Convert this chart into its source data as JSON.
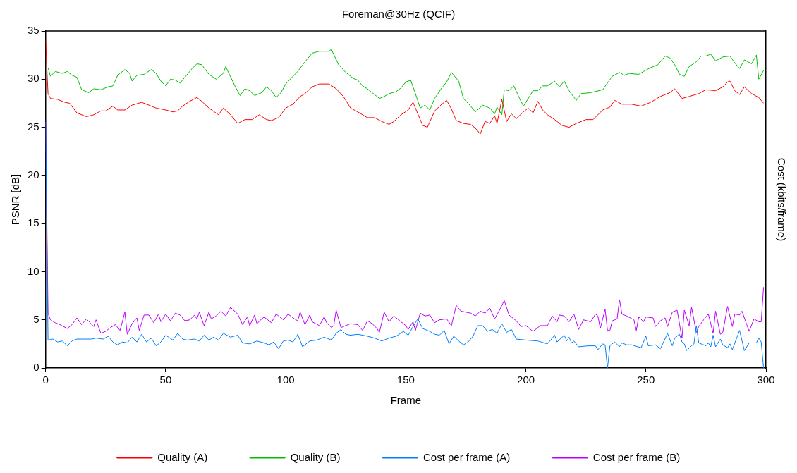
{
  "chart_data": {
    "type": "line",
    "title": "Foreman@30Hz (QCIF)",
    "xlabel": "Frame",
    "ylabel": "PSNR [dB]",
    "y2label": "Cost (kbits/frame)",
    "xlim": [
      0,
      300
    ],
    "xticks": [
      0,
      50,
      100,
      150,
      200,
      250,
      300
    ],
    "ylim": [
      0,
      35
    ],
    "yticks": [
      0,
      5,
      10,
      15,
      20,
      25,
      30,
      35
    ],
    "grid": false,
    "legend": "bottom",
    "marker": "none",
    "line_style": "solid",
    "series": [
      {
        "name": "Quality (A)",
        "color": "#ff0000",
        "x": [
          0,
          1,
          2,
          5,
          8,
          10,
          13,
          17,
          20,
          23,
          25,
          28,
          30,
          33,
          36,
          40,
          43,
          46,
          50,
          53,
          55,
          57,
          60,
          63,
          65,
          68,
          72,
          74,
          77,
          80,
          83,
          86,
          89,
          92,
          94,
          97,
          100,
          103,
          106,
          108,
          111,
          114,
          118,
          121,
          124,
          127,
          130,
          134,
          137,
          140,
          143,
          145,
          148,
          151,
          153,
          155,
          157,
          159,
          162,
          165,
          167,
          169,
          171,
          174,
          177,
          179,
          181,
          183,
          185,
          187,
          188,
          190,
          192,
          194,
          196,
          199,
          201,
          203,
          205,
          207,
          209,
          212,
          215,
          218,
          221,
          225,
          228,
          232,
          235,
          237,
          240,
          244,
          248,
          252,
          256,
          260,
          262,
          265,
          268,
          272,
          275,
          279,
          282,
          284,
          285,
          287,
          289,
          291,
          294,
          297,
          299
        ],
        "values": [
          34,
          28.5,
          28,
          27.9,
          27.6,
          27.5,
          26.5,
          26.1,
          26.3,
          26.7,
          26.7,
          27.2,
          26.8,
          26.8,
          27.3,
          27.6,
          27.3,
          27,
          26.8,
          26.6,
          26.7,
          27.2,
          27.7,
          28.1,
          27.7,
          27,
          26.3,
          27,
          26.3,
          25.4,
          25.8,
          25.8,
          26.3,
          25.8,
          25.7,
          26,
          27,
          27.4,
          28.2,
          28.5,
          29.2,
          29.5,
          29.5,
          29,
          28.2,
          27,
          26.6,
          26,
          26,
          25.6,
          25.3,
          25.6,
          26.3,
          26.8,
          27.6,
          26.4,
          25.2,
          25,
          26.7,
          27.4,
          27.8,
          26.9,
          25.7,
          25.4,
          25.3,
          24.9,
          24.3,
          25.6,
          25.4,
          26.2,
          25.4,
          27.9,
          25.6,
          26.4,
          25.9,
          26.6,
          27,
          26.5,
          27.7,
          26.8,
          26.3,
          25.8,
          25.2,
          25,
          25.4,
          25.8,
          25.8,
          26.8,
          27.1,
          27.8,
          27.4,
          27.4,
          27.2,
          27.6,
          28.2,
          28.6,
          29,
          28,
          28.2,
          28.5,
          28.9,
          28.8,
          29.2,
          29.7,
          29.8,
          28.8,
          28.4,
          29.2,
          28.5,
          28.1,
          27.5
        ]
      },
      {
        "name": "Quality (B)",
        "color": "#00c000",
        "x": [
          1,
          2,
          4,
          7,
          9,
          11,
          13,
          15,
          18,
          20,
          23,
          26,
          28,
          30,
          33,
          35,
          36,
          38,
          41,
          44,
          46,
          48,
          50,
          52,
          54,
          56,
          58,
          61,
          63,
          65,
          68,
          71,
          74,
          75,
          79,
          81,
          83,
          85,
          87,
          90,
          92,
          94,
          96,
          98,
          100,
          103,
          105,
          108,
          111,
          114,
          118,
          119,
          122,
          125,
          128,
          130,
          132,
          134,
          137,
          139,
          141,
          143,
          146,
          148,
          150,
          152,
          154,
          156,
          158,
          160,
          162,
          165,
          167,
          169,
          172,
          174,
          177,
          179,
          182,
          185,
          187,
          188,
          190,
          191,
          193,
          195,
          197,
          199,
          201,
          203,
          205,
          207,
          209,
          212,
          214,
          216,
          218,
          221,
          223,
          227,
          232,
          234,
          236,
          239,
          241,
          243,
          247,
          249,
          252,
          255,
          258,
          260,
          262,
          264,
          266,
          268,
          271,
          273,
          275,
          277,
          279,
          282,
          285,
          287,
          289,
          291,
          294,
          296,
          297,
          299
        ],
        "values": [
          31.2,
          30.3,
          30.8,
          30.6,
          30.8,
          30.4,
          30.2,
          28.9,
          28.6,
          29,
          28.9,
          29.2,
          29.3,
          30.4,
          31,
          30.6,
          29.8,
          30.4,
          30.5,
          31,
          30.6,
          29.8,
          29.3,
          30,
          29.9,
          29.6,
          30.2,
          31.1,
          31.6,
          31.5,
          30.5,
          30,
          30.6,
          31.3,
          29.2,
          28.3,
          29,
          28.8,
          28.3,
          28.6,
          29.2,
          28.8,
          28.1,
          28.6,
          29.5,
          30.3,
          30.8,
          31.8,
          32.7,
          32.9,
          32.9,
          33.1,
          31.5,
          30.7,
          30.1,
          29.9,
          29.3,
          29,
          28.4,
          28,
          28.2,
          28.5,
          28.7,
          29.1,
          29.7,
          29.9,
          28.5,
          27,
          27.3,
          26.8,
          28,
          29.1,
          29.7,
          30.7,
          29.8,
          28,
          27.2,
          26.6,
          27.3,
          27,
          26.4,
          27.1,
          26.3,
          28.9,
          28.8,
          29.3,
          28.2,
          27.2,
          28,
          28.8,
          28.8,
          29.3,
          29.3,
          29.8,
          29.2,
          29.8,
          28.8,
          27.8,
          28.5,
          28.6,
          28.9,
          29.6,
          30.3,
          30.7,
          30.4,
          30.6,
          30.5,
          30.8,
          31.2,
          31.5,
          32.4,
          32.2,
          31.5,
          30.5,
          30.3,
          31.3,
          31.8,
          32.4,
          32.4,
          32.6,
          31.9,
          32.3,
          32.4,
          31.7,
          31.1,
          32,
          31.6,
          32.5,
          30,
          30.9
        ]
      },
      {
        "name": "Cost per frame (A)",
        "color": "#0080ff",
        "x": [
          0,
          1,
          3,
          5,
          7,
          9,
          11,
          13,
          16,
          19,
          21,
          24,
          26,
          28,
          30,
          32,
          34,
          36,
          38,
          40,
          42,
          44,
          46,
          48,
          50,
          53,
          55,
          57,
          59,
          62,
          64,
          66,
          68,
          70,
          72,
          74,
          77,
          80,
          82,
          85,
          88,
          91,
          93,
          95,
          97,
          99,
          101,
          103,
          105,
          107,
          110,
          113,
          116,
          119,
          121,
          123,
          125,
          127,
          130,
          134,
          137,
          140,
          143,
          146,
          149,
          151,
          153,
          155,
          157,
          160,
          162,
          164,
          166,
          168,
          170,
          172,
          174,
          176,
          178,
          180,
          182,
          184,
          186,
          188,
          190,
          192,
          194,
          196,
          200,
          205,
          209,
          212,
          213,
          216,
          217,
          218,
          219,
          220,
          222,
          226,
          229,
          230,
          232,
          233,
          234,
          235,
          237,
          239,
          240,
          242,
          244,
          248,
          250,
          251,
          254,
          256,
          257,
          259,
          261,
          262,
          264,
          265,
          266,
          267,
          269,
          270,
          271,
          272,
          275,
          276,
          277,
          278,
          279,
          281,
          282,
          284,
          285,
          286,
          289,
          291,
          293,
          296,
          297,
          298,
          299
        ],
        "values": [
          25.6,
          2.9,
          3,
          2.7,
          2.8,
          2.3,
          2.8,
          3,
          3,
          3,
          3.1,
          3,
          3.3,
          2.7,
          2.4,
          2.7,
          2.6,
          3.2,
          2.7,
          3.5,
          2.7,
          3.1,
          2.3,
          2.7,
          3.4,
          2.9,
          3.6,
          3,
          2.9,
          3,
          2.8,
          3.4,
          2.9,
          3.2,
          2.9,
          3.6,
          3.2,
          3.4,
          2.6,
          2.5,
          2.8,
          2.6,
          2.4,
          2.7,
          2,
          2.8,
          2.9,
          2.7,
          3.5,
          2.2,
          2.8,
          2.9,
          3.2,
          2.9,
          3.6,
          4,
          3.5,
          3.4,
          3.5,
          3.3,
          3.1,
          2.8,
          3.1,
          3.3,
          3.8,
          3.4,
          4.3,
          5.1,
          4.1,
          3.8,
          3.5,
          3.4,
          3.9,
          2.5,
          3.3,
          2.8,
          2.4,
          2.7,
          3.3,
          4.4,
          4.4,
          3.8,
          4,
          3.6,
          4.6,
          3.7,
          4,
          3,
          2.9,
          2.8,
          2.5,
          3.4,
          2.7,
          3.4,
          2.8,
          3.2,
          2.6,
          2.8,
          2.2,
          2.3,
          2.3,
          1.9,
          2.5,
          2.4,
          0,
          2.3,
          2.7,
          2.2,
          2.6,
          2.4,
          2.4,
          2.1,
          3.3,
          2.3,
          2.4,
          2,
          2.5,
          3.6,
          2.3,
          3.1,
          3.5,
          2.7,
          2.5,
          1.8,
          2.3,
          2.5,
          4.4,
          2.6,
          2.3,
          2.6,
          2.2,
          3.4,
          2.2,
          3,
          2.4,
          2.1,
          2.5,
          1.9,
          3.9,
          1.8,
          2.6,
          2.6,
          3.1,
          2.7,
          0
        ]
      },
      {
        "name": "Cost per frame (B)",
        "color": "#c000ff",
        "x": [
          0,
          1,
          2,
          4,
          6,
          9,
          11,
          13,
          15,
          17,
          20,
          21,
          23,
          25,
          27,
          29,
          31,
          33,
          34,
          36,
          38,
          39,
          41,
          43,
          45,
          47,
          48,
          50,
          52,
          54,
          56,
          58,
          60,
          62,
          63,
          64,
          66,
          68,
          69,
          71,
          73,
          75,
          77,
          80,
          82,
          84,
          85,
          87,
          88,
          90,
          91,
          94,
          96,
          99,
          101,
          103,
          105,
          106,
          108,
          110,
          111,
          114,
          116,
          117,
          119,
          120,
          121,
          123,
          125,
          127,
          130,
          132,
          134,
          136,
          138,
          139,
          141,
          143,
          145,
          148,
          150,
          151,
          153,
          154,
          156,
          158,
          160,
          162,
          164,
          167,
          169,
          171,
          173,
          175,
          177,
          179,
          181,
          183,
          185,
          187,
          189,
          191,
          193,
          196,
          198,
          200,
          203,
          206,
          209,
          211,
          213,
          214,
          216,
          218,
          220,
          222,
          224,
          227,
          229,
          230,
          231,
          233,
          234,
          235,
          236,
          238,
          239,
          240,
          242,
          245,
          246,
          247,
          249,
          250,
          253,
          254,
          256,
          258,
          259,
          261,
          263,
          265,
          266,
          268,
          269,
          271,
          272,
          274,
          276,
          278,
          279,
          281,
          282,
          284,
          286,
          287,
          289,
          290,
          292,
          293,
          295,
          297,
          298,
          299
        ],
        "values": [
          25.6,
          5.7,
          5,
          4.7,
          4.5,
          4.1,
          4.5,
          5.2,
          4.5,
          5.1,
          4.3,
          5,
          3.6,
          3.8,
          4.2,
          4.5,
          3.9,
          5.8,
          3.5,
          4.6,
          5.2,
          3.9,
          5.5,
          5.5,
          4.7,
          5.6,
          4.8,
          5.6,
          4.9,
          5.7,
          5.5,
          4.9,
          5,
          5.5,
          5.1,
          5.8,
          4.4,
          5.8,
          5.1,
          5.4,
          5.9,
          5.4,
          6.3,
          5.6,
          4.5,
          5.3,
          4.4,
          5.5,
          4.6,
          5.1,
          5.3,
          4.7,
          5.6,
          5,
          5.6,
          5.2,
          4.9,
          5.8,
          4.5,
          5.5,
          4.8,
          4.4,
          5.3,
          4.7,
          4.2,
          4.4,
          6,
          4.2,
          4.4,
          4.6,
          4.5,
          3.9,
          4.9,
          4.6,
          4.1,
          3.7,
          5.8,
          4.8,
          5.4,
          4.8,
          4.4,
          4,
          4.8,
          3.9,
          5.7,
          5.4,
          5.5,
          4.7,
          5,
          5.1,
          4.4,
          6.5,
          5.9,
          5.8,
          5.7,
          5.4,
          5.9,
          5.7,
          6.2,
          5.1,
          6,
          7,
          5.5,
          4.9,
          4.3,
          4.4,
          3.8,
          4.4,
          4.4,
          5.4,
          4.8,
          5.5,
          5.4,
          4.8,
          5.6,
          4,
          5,
          4.8,
          5.6,
          5.4,
          4.1,
          6.1,
          3.9,
          3.9,
          4.9,
          5.1,
          7.1,
          5.6,
          5.4,
          5,
          3.9,
          5.3,
          4.8,
          5.3,
          5.2,
          4.3,
          4.9,
          5.2,
          4.3,
          5.8,
          6,
          3.1,
          6,
          4.4,
          6.3,
          3.7,
          4.3,
          5,
          5.6,
          3.6,
          5.9,
          3.5,
          3.7,
          6.4,
          4.3,
          5.6,
          5.5,
          5.9,
          4.5,
          3.8,
          5.1,
          4.8,
          4.8,
          8.4
        ]
      }
    ]
  }
}
